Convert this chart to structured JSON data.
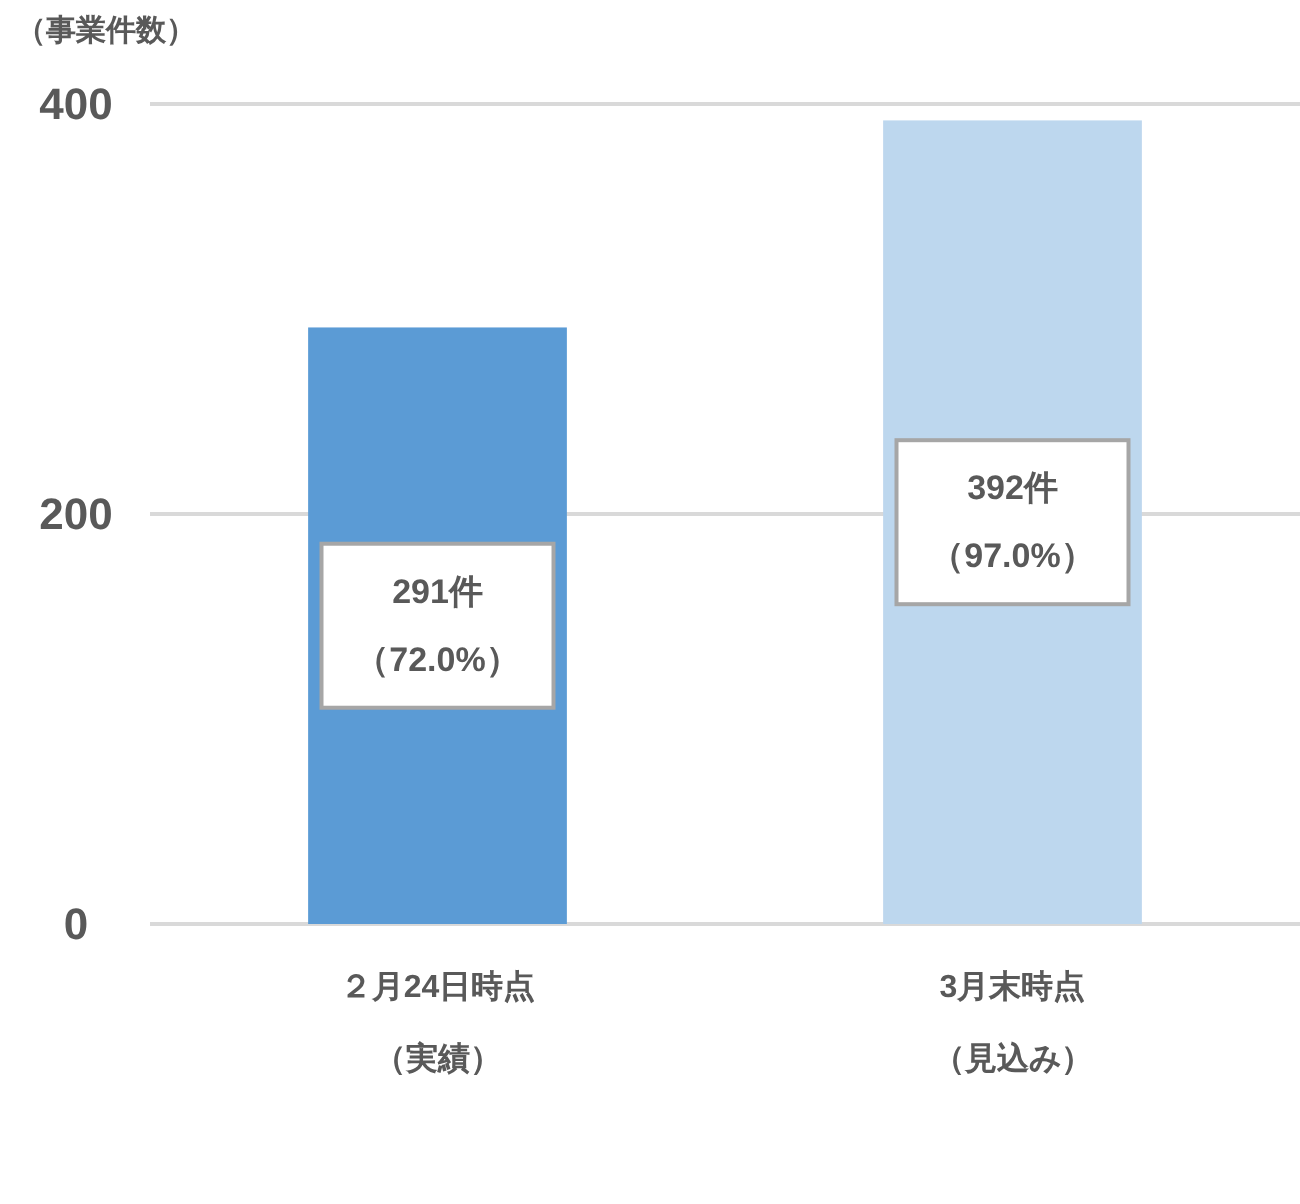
{
  "chart_data": {
    "type": "bar",
    "ylabel": "（事業件数）",
    "categories": [
      "２月24日時点（実績）",
      "3月末時点（見込み）"
    ],
    "values": [
      291,
      392
    ],
    "colors": [
      "#5b9bd5",
      "#bdd7ee"
    ],
    "value_labels": [
      "291件（72.0%）",
      "392件（97.0%）"
    ],
    "ylim": [
      0,
      400
    ],
    "yticks": [
      0,
      200,
      400
    ],
    "grid": "y"
  }
}
